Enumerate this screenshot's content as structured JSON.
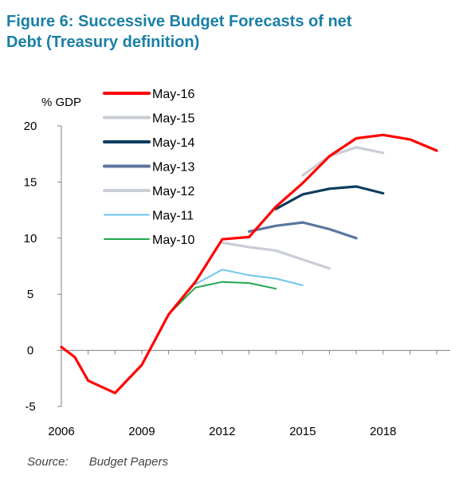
{
  "title_line1": "Figure 6:  Successive Budget Forecasts of net",
  "title_line2": "Debt (Treasury definition)",
  "source_label": "Source:",
  "source_text": "Budget Papers",
  "chart_data": {
    "type": "line",
    "ylabel": "% GDP",
    "xlim": [
      2006,
      2020
    ],
    "ylim": [
      -5,
      20
    ],
    "xticks": [
      2006,
      2009,
      2012,
      2015,
      2018
    ],
    "yticks": [
      20,
      15,
      10,
      5,
      0,
      -5
    ],
    "grid": false,
    "legend_position": "top-left",
    "series": [
      {
        "name": "May-16",
        "color": "#ff0000",
        "points": [
          [
            2006,
            0.3
          ],
          [
            2006.5,
            -0.6
          ],
          [
            2007,
            -2.7
          ],
          [
            2008,
            -3.8
          ],
          [
            2009,
            -1.3
          ],
          [
            2010,
            3.2
          ],
          [
            2011,
            6.1
          ],
          [
            2012,
            9.9
          ],
          [
            2013,
            10.1
          ],
          [
            2014,
            12.8
          ],
          [
            2015,
            14.9
          ],
          [
            2016,
            17.3
          ],
          [
            2017,
            18.9
          ],
          [
            2018,
            19.2
          ],
          [
            2019,
            18.8
          ],
          [
            2020,
            17.8
          ]
        ]
      },
      {
        "name": "May-15",
        "color": "#c9cdd6",
        "points": [
          [
            2015,
            15.6
          ],
          [
            2016,
            17.3
          ],
          [
            2017,
            18.1
          ],
          [
            2018,
            17.6
          ]
        ]
      },
      {
        "name": "May-14",
        "color": "#0d3c5e",
        "points": [
          [
            2014,
            12.6
          ],
          [
            2015,
            13.9
          ],
          [
            2016,
            14.4
          ],
          [
            2017,
            14.6
          ],
          [
            2018,
            14.0
          ]
        ]
      },
      {
        "name": "May-13",
        "color": "#5b76a0",
        "points": [
          [
            2013,
            10.6
          ],
          [
            2014,
            11.1
          ],
          [
            2015,
            11.4
          ],
          [
            2016,
            10.8
          ],
          [
            2017,
            10.0
          ]
        ]
      },
      {
        "name": "May-12",
        "color": "#c9cdd6",
        "points": [
          [
            2012,
            9.6
          ],
          [
            2013,
            9.2
          ],
          [
            2014,
            8.9
          ],
          [
            2015,
            8.1
          ],
          [
            2016,
            7.3
          ]
        ]
      },
      {
        "name": "May-11",
        "color": "#6ec6ee",
        "points": [
          [
            2011,
            5.9
          ],
          [
            2012,
            7.2
          ],
          [
            2013,
            6.7
          ],
          [
            2014,
            6.4
          ],
          [
            2015,
            5.8
          ]
        ]
      },
      {
        "name": "May-10",
        "color": "#1fa84f",
        "points": [
          [
            2010,
            3.2
          ],
          [
            2011,
            5.6
          ],
          [
            2012,
            6.1
          ],
          [
            2013,
            6.0
          ],
          [
            2014,
            5.5
          ]
        ]
      }
    ]
  }
}
